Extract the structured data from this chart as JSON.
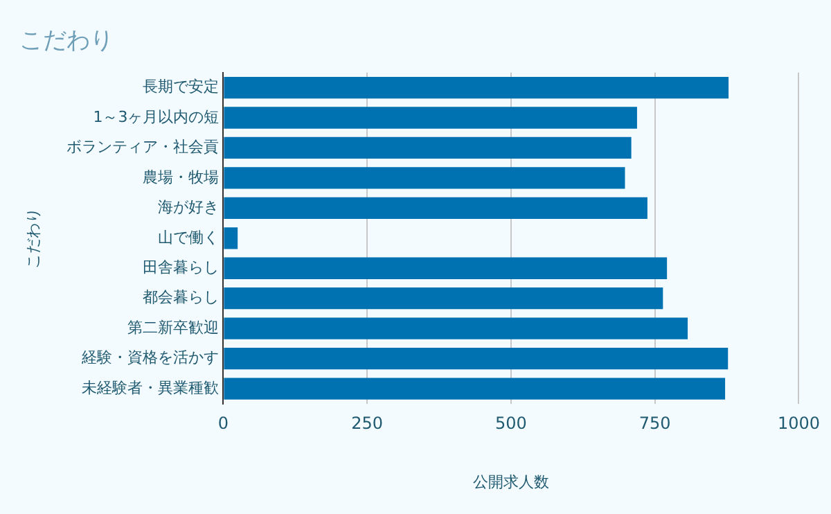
{
  "chart_data": {
    "type": "bar",
    "orientation": "horizontal",
    "title": "こだわり",
    "xlabel": "公開求人数",
    "ylabel": "こだわり",
    "categories": [
      "長期で安定",
      "1～3ヶ月以内の短",
      "ボランティア・社会貢",
      "農場・牧場",
      "海が好き",
      "山で働く",
      "田舎暮らし",
      "都会暮らし",
      "第二新卒歓迎",
      "経験・資格を活かす",
      "未経験者・異業種歓"
    ],
    "values": [
      878,
      719,
      709,
      698,
      737,
      25,
      771,
      764,
      807,
      877,
      872
    ],
    "color": "#0072b2",
    "xlim": [
      0,
      1000
    ],
    "xticks": [
      0,
      250,
      500,
      750,
      1000
    ],
    "grid": "x",
    "legend": false
  }
}
